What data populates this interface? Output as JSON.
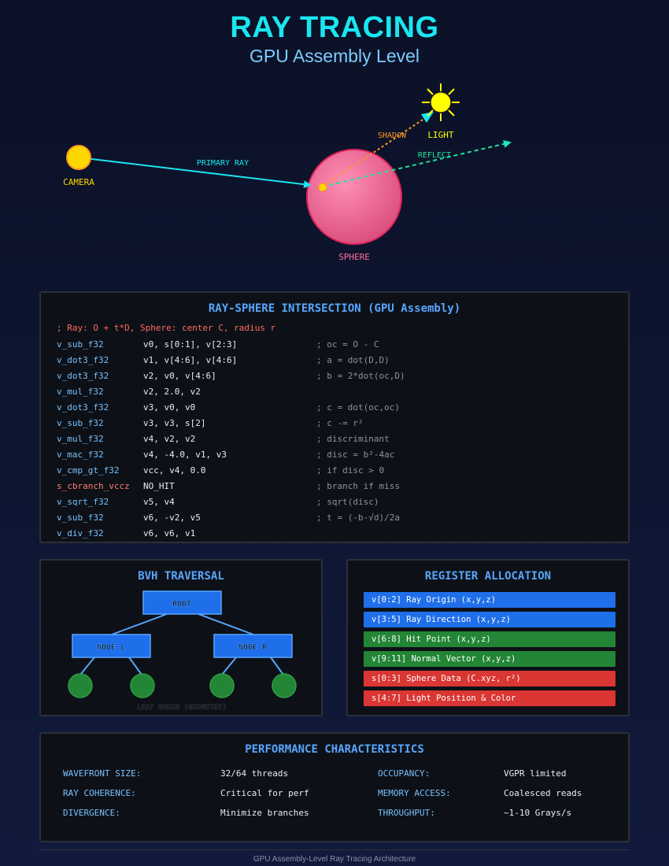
{
  "header": {
    "title": "RAY TRACING",
    "subtitle": "GPU Assembly Level"
  },
  "scene": {
    "camera_label": "CAMERA",
    "light_label": "LIGHT",
    "sphere_label": "SPHERE",
    "primary_ray_label": "PRIMARY RAY",
    "shadow_label": "SHADOW",
    "reflect_label": "REFLECT",
    "colors": {
      "camera": "#ffd700",
      "light": "#ffff00",
      "sphere": "#ff6b9d",
      "primary_ray": "#19e6f0",
      "shadow": "#ff9a1f",
      "reflect": "#22e39a"
    }
  },
  "intersection": {
    "title": "RAY-SPHERE INTERSECTION (GPU Assembly)",
    "header_comment": "; Ray: O + t*D, Sphere: center C, radius r",
    "lines": [
      {
        "op": "v_sub_f32",
        "args": "v0, s[0:1], v[2:3]",
        "comment": "; oc = O - C"
      },
      {
        "op": "v_dot3_f32",
        "args": "v1, v[4:6], v[4:6]",
        "comment": "; a = dot(D,D)"
      },
      {
        "op": "v_dot3_f32",
        "args": "v2, v0, v[4:6]",
        "comment": "; b = 2*dot(oc,D)"
      },
      {
        "op": "v_mul_f32",
        "args": "v2, 2.0, v2",
        "comment": ""
      },
      {
        "op": "v_dot3_f32",
        "args": "v3, v0, v0",
        "comment": "; c = dot(oc,oc)"
      },
      {
        "op": "v_sub_f32",
        "args": "v3, v3, s[2]",
        "comment": "; c -= r²"
      },
      {
        "op": "v_mul_f32",
        "args": "v4, v2, v2",
        "comment": "; discriminant"
      },
      {
        "op": "v_mac_f32",
        "args": "v4, -4.0, v1, v3",
        "comment": "; disc = b²-4ac"
      },
      {
        "op": "v_cmp_gt_f32",
        "args": "vcc, v4, 0.0",
        "comment": "; if disc > 0"
      },
      {
        "op": "s_cbranch_vccz",
        "args": "NO_HIT",
        "comment": "; branch if miss"
      },
      {
        "op": "v_sqrt_f32",
        "args": "v5, v4",
        "comment": "; sqrt(disc)"
      },
      {
        "op": "v_sub_f32",
        "args": "v6, -v2, v5",
        "comment": "; t = (-b-√d)/2a"
      },
      {
        "op": "v_div_f32",
        "args": "v6, v6, v1",
        "comment": ""
      }
    ]
  },
  "bvh": {
    "title": "BVH TRAVERSAL",
    "root_label": "ROOT",
    "node_left_label": "NODE L",
    "node_right_label": "NODE R",
    "leaf_label": "LEAF NODES (GEOMETRY)"
  },
  "registers": {
    "title": "REGISTER ALLOCATION",
    "items": [
      {
        "text": "v[0:2] Ray Origin (x,y,z)",
        "color": "#1f6feb"
      },
      {
        "text": "v[3:5] Ray Direction (x,y,z)",
        "color": "#1f6feb"
      },
      {
        "text": "v[6:8] Hit Point (x,y,z)",
        "color": "#238636"
      },
      {
        "text": "v[9:11] Normal Vector (x,y,z)",
        "color": "#238636"
      },
      {
        "text": "s[0:3] Sphere Data (C.xyz, r²)",
        "color": "#da3633"
      },
      {
        "text": "s[4:7] Light Position & Color",
        "color": "#da3633"
      }
    ]
  },
  "performance": {
    "title": "PERFORMANCE CHARACTERISTICS",
    "left": [
      {
        "label": "WAVEFRONT SIZE:",
        "value": "32/64 threads"
      },
      {
        "label": "RAY COHERENCE:",
        "value": "Critical for perf"
      },
      {
        "label": "DIVERGENCE:",
        "value": "Minimize branches"
      }
    ],
    "right": [
      {
        "label": "OCCUPANCY:",
        "value": "VGPR limited"
      },
      {
        "label": "MEMORY ACCESS:",
        "value": "Coalesced reads"
      },
      {
        "label": "THROUGHPUT:",
        "value": "~1-10 Grays/s"
      }
    ]
  },
  "footer": {
    "text": "GPU Assembly-Level Ray Tracing Architecture"
  }
}
